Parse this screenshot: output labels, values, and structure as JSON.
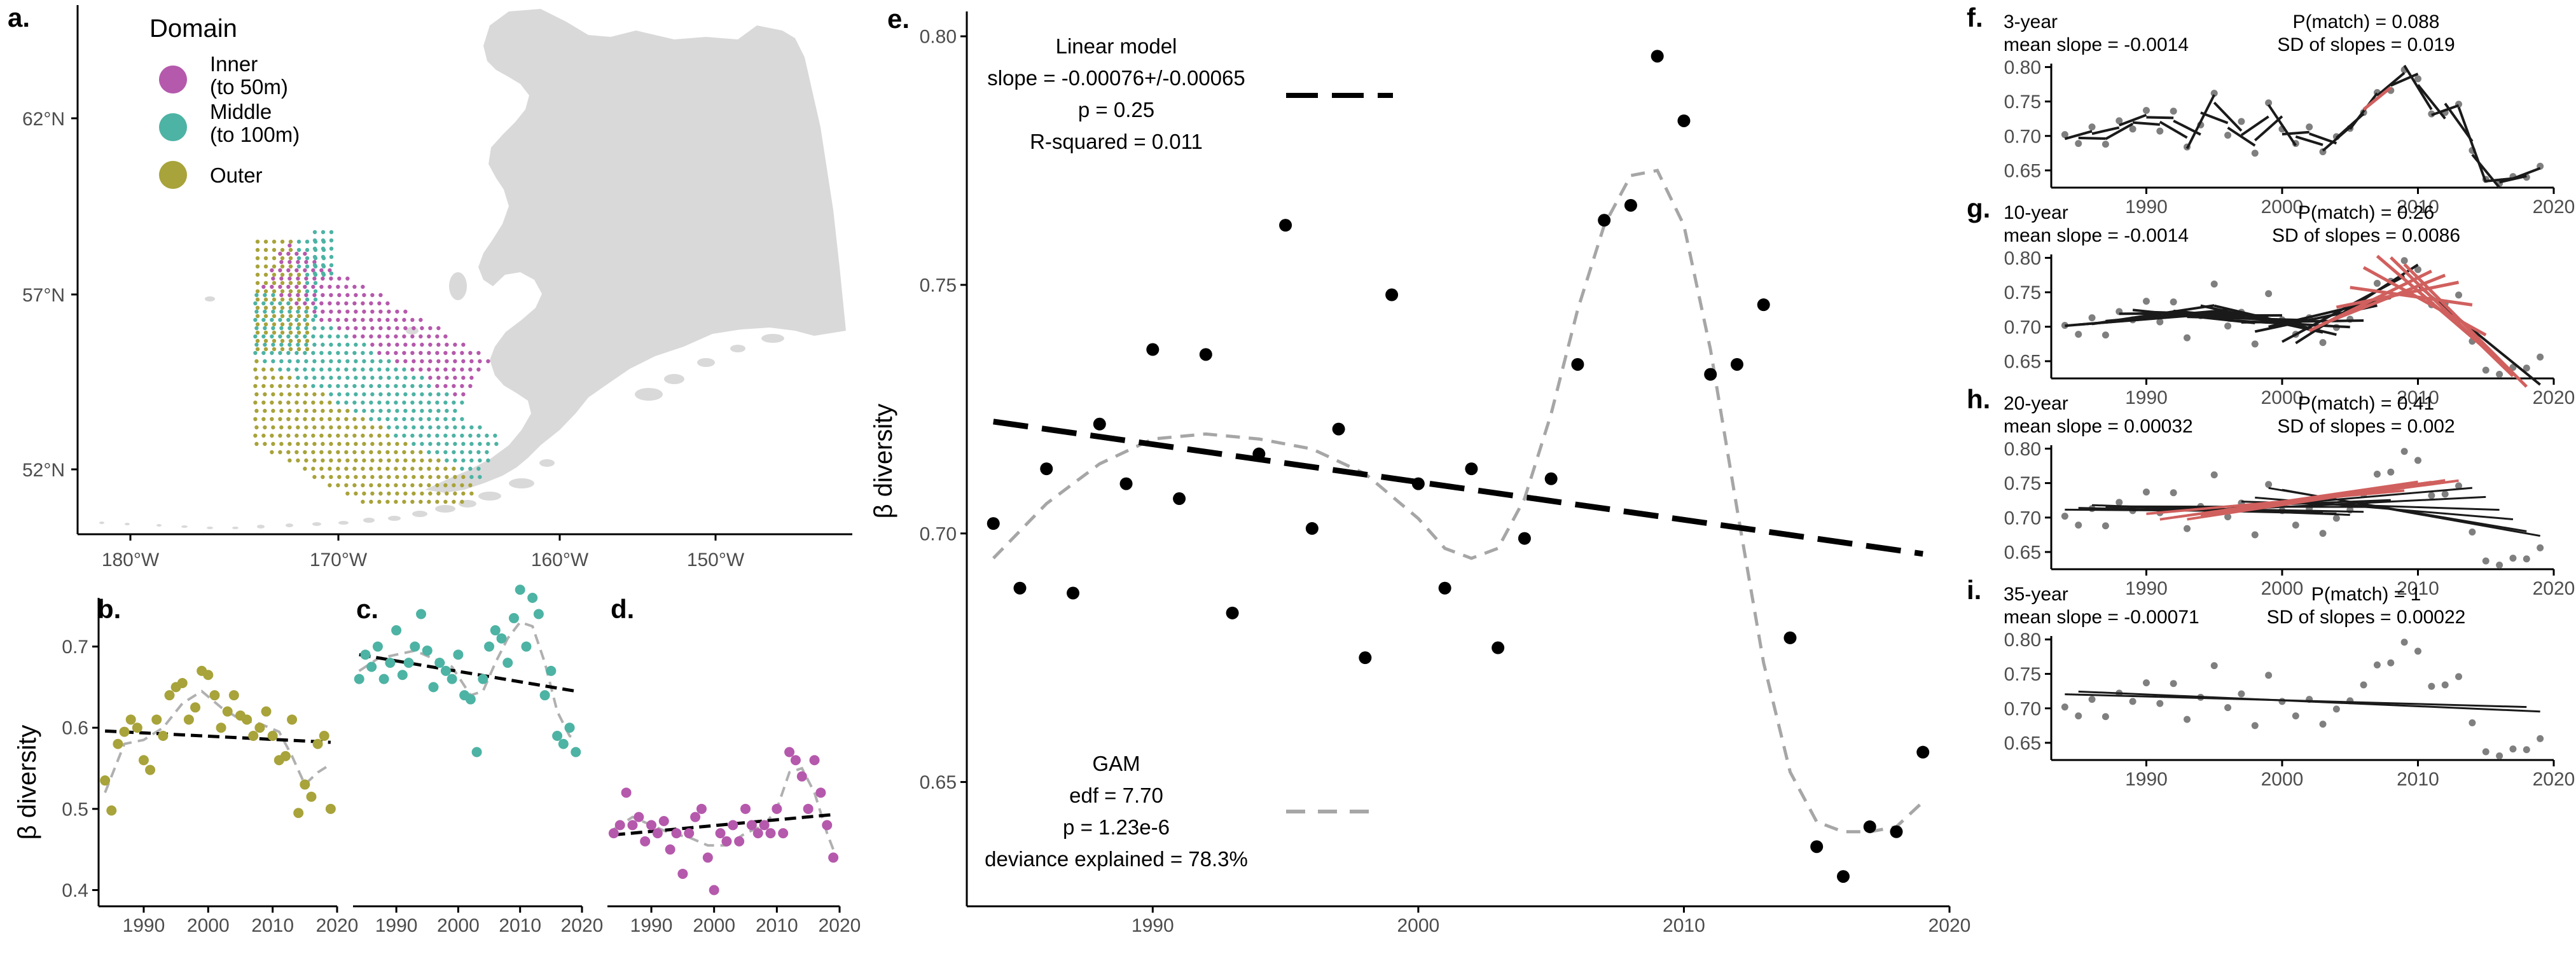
{
  "colors": {
    "inner": "#b559ac",
    "middle": "#4db3a4",
    "outer": "#a8a33a",
    "land": "#d9d9d9",
    "gam": "#a6a6a6",
    "window_match": "#d0605e",
    "window_other": "#1a1a1a",
    "point_small": "#7f7f7f"
  },
  "map": {
    "letter": "a.",
    "legend_title": "Domain",
    "legend": [
      {
        "label": [
          "Inner",
          "(to 50m)"
        ],
        "color": "inner"
      },
      {
        "label": [
          "Middle",
          "(to 100m)"
        ],
        "color": "middle"
      },
      {
        "label": [
          "Outer"
        ],
        "color": "outer"
      }
    ],
    "lat_ticks": [
      "62°N",
      "57°N",
      "52°N"
    ],
    "lon_ticks": [
      "180°W",
      "170°W",
      "160°W",
      "150°W"
    ]
  },
  "main": {
    "letter": "e.",
    "linear": {
      "lines": [
        "Linear model",
        "slope = -0.00076+/-0.00065",
        "p = 0.25",
        "R-squared = 0.011"
      ]
    },
    "gam": {
      "lines": [
        "GAM",
        "edf = 7.70",
        "p = 1.23e-6",
        "deviance explained = 78.3%"
      ]
    }
  },
  "subpanels": {
    "ylabel": "β diversity",
    "b": {
      "letter": "b."
    },
    "c": {
      "letter": "c."
    },
    "d": {
      "letter": "d."
    }
  },
  "windows": {
    "f": {
      "letter": "f.",
      "l1": "3-year",
      "l2": "mean slope = -0.0014",
      "r1": "P(match) = 0.088",
      "r2": "SD of slopes = 0.019"
    },
    "g": {
      "letter": "g.",
      "l1": "10-year",
      "l2": "mean slope = -0.0014",
      "r1": "P(match) = 0.26",
      "r2": "SD of slopes = 0.0086"
    },
    "h": {
      "letter": "h.",
      "l1": "20-year",
      "l2": "mean slope = 0.00032",
      "r1": "P(match) = 0.41",
      "r2": "SD of slopes = 0.002"
    },
    "i": {
      "letter": "i.",
      "l1": "35-year",
      "l2": "mean slope = -0.00071",
      "r1": "P(match) = 1",
      "r2": "SD of slopes = 0.00022"
    }
  },
  "chart_data": [
    {
      "id": "e",
      "type": "scatter",
      "ylabel": "β diversity",
      "xlim": [
        1983,
        2020
      ],
      "ylim": [
        0.625,
        0.805
      ],
      "x_ticks": [
        1990,
        2000,
        2010,
        2020
      ],
      "y_ticks": [
        0.65,
        0.7,
        0.75,
        0.8
      ],
      "grid": false,
      "x": [
        1984,
        1985,
        1986,
        1987,
        1988,
        1989,
        1990,
        1991,
        1992,
        1993,
        1994,
        1995,
        1996,
        1997,
        1998,
        1999,
        2000,
        2001,
        2002,
        2003,
        2004,
        2005,
        2006,
        2007,
        2008,
        2009,
        2010,
        2011,
        2012,
        2013,
        2014,
        2015,
        2016,
        2017,
        2018,
        2019
      ],
      "y": [
        0.702,
        0.689,
        0.713,
        0.688,
        0.722,
        0.71,
        0.737,
        0.707,
        0.736,
        0.684,
        0.716,
        0.762,
        0.701,
        0.721,
        0.675,
        0.748,
        0.71,
        0.689,
        0.713,
        0.677,
        0.699,
        0.711,
        0.734,
        0.763,
        0.766,
        0.796,
        0.783,
        0.732,
        0.734,
        0.746,
        0.679,
        0.637,
        0.631,
        0.641,
        0.64,
        0.656
      ],
      "linear_fit": {
        "slope": -0.00076,
        "at_1984": 0.7225
      },
      "gam_fit": {
        "x": [
          1984,
          1986,
          1988,
          1990,
          1992,
          1994,
          1996,
          1998,
          2000,
          2001,
          2002,
          2003,
          2004,
          2005,
          2006,
          2007,
          2008,
          2009,
          2010,
          2011,
          2012,
          2013,
          2014,
          2015,
          2016,
          2017,
          2018,
          2019
        ],
        "y": [
          0.695,
          0.706,
          0.714,
          0.719,
          0.72,
          0.719,
          0.717,
          0.712,
          0.703,
          0.697,
          0.695,
          0.697,
          0.707,
          0.724,
          0.745,
          0.762,
          0.772,
          0.773,
          0.762,
          0.737,
          0.705,
          0.674,
          0.652,
          0.642,
          0.64,
          0.64,
          0.641,
          0.646
        ]
      }
    },
    {
      "id": "b",
      "type": "scatter",
      "series": [
        {
          "color": "outer"
        }
      ],
      "ylabel": "β diversity",
      "xlim": [
        1983,
        2020
      ],
      "ylim": [
        0.38,
        0.76
      ],
      "x_ticks": [
        1990,
        2000,
        2010,
        2020
      ],
      "y_ticks": [
        0.4,
        0.5,
        0.6,
        0.7
      ],
      "x": [
        1984,
        1985,
        1986,
        1987,
        1988,
        1989,
        1990,
        1991,
        1992,
        1993,
        1994,
        1995,
        1996,
        1997,
        1998,
        1999,
        2000,
        2001,
        2002,
        2003,
        2004,
        2005,
        2006,
        2007,
        2008,
        2009,
        2010,
        2011,
        2012,
        2013,
        2014,
        2015,
        2016,
        2017,
        2018,
        2019
      ],
      "y": [
        0.535,
        0.498,
        0.58,
        0.595,
        0.61,
        0.6,
        0.56,
        0.548,
        0.61,
        0.59,
        0.64,
        0.65,
        0.655,
        0.61,
        0.625,
        0.67,
        0.665,
        0.64,
        0.6,
        0.62,
        0.64,
        0.615,
        0.61,
        0.59,
        0.6,
        0.62,
        0.59,
        0.56,
        0.565,
        0.61,
        0.495,
        0.53,
        0.515,
        0.58,
        0.59,
        0.5
      ],
      "linear_fit": {
        "at_1984": 0.596,
        "at_2019": 0.582
      },
      "gam_fit": {
        "x": [
          1984,
          1987,
          1990,
          1993,
          1996,
          1999,
          2002,
          2005,
          2008,
          2011,
          2013,
          2015,
          2017,
          2019
        ],
        "y": [
          0.52,
          0.58,
          0.585,
          0.6,
          0.63,
          0.645,
          0.625,
          0.61,
          0.605,
          0.595,
          0.565,
          0.53,
          0.545,
          0.555
        ]
      }
    },
    {
      "id": "c",
      "type": "scatter",
      "series": [
        {
          "color": "middle"
        }
      ],
      "xlim": [
        1983,
        2020
      ],
      "ylim": [
        0.38,
        0.76
      ],
      "x_ticks": [
        1990,
        2000,
        2010,
        2020
      ],
      "y_ticks": [
        0.4,
        0.5,
        0.6,
        0.7
      ],
      "x": [
        1984,
        1985,
        1986,
        1987,
        1988,
        1989,
        1990,
        1991,
        1992,
        1993,
        1994,
        1995,
        1996,
        1997,
        1998,
        1999,
        2000,
        2001,
        2002,
        2003,
        2004,
        2005,
        2006,
        2007,
        2008,
        2009,
        2010,
        2011,
        2012,
        2013,
        2014,
        2015,
        2016,
        2017,
        2018,
        2019
      ],
      "y": [
        0.66,
        0.69,
        0.675,
        0.7,
        0.66,
        0.68,
        0.72,
        0.665,
        0.68,
        0.7,
        0.74,
        0.695,
        0.65,
        0.68,
        0.67,
        0.66,
        0.69,
        0.64,
        0.635,
        0.57,
        0.66,
        0.7,
        0.72,
        0.71,
        0.68,
        0.735,
        0.77,
        0.7,
        0.76,
        0.74,
        0.64,
        0.67,
        0.59,
        0.58,
        0.6,
        0.57
      ],
      "linear_fit": {
        "at_1984": 0.69,
        "at_2019": 0.645
      },
      "gam_fit": {
        "x": [
          1984,
          1987,
          1990,
          1993,
          1996,
          1999,
          2002,
          2004,
          2006,
          2008,
          2010,
          2012,
          2014,
          2016,
          2018,
          2019
        ],
        "y": [
          0.67,
          0.685,
          0.69,
          0.695,
          0.685,
          0.675,
          0.64,
          0.645,
          0.68,
          0.71,
          0.73,
          0.725,
          0.68,
          0.62,
          0.59,
          0.585
        ]
      }
    },
    {
      "id": "d",
      "type": "scatter",
      "series": [
        {
          "color": "inner"
        }
      ],
      "xlim": [
        1983,
        2020
      ],
      "ylim": [
        0.38,
        0.76
      ],
      "x_ticks": [
        1990,
        2000,
        2010,
        2020
      ],
      "y_ticks": [
        0.4,
        0.5,
        0.6,
        0.7
      ],
      "x": [
        1984,
        1985,
        1986,
        1987,
        1988,
        1989,
        1990,
        1991,
        1992,
        1993,
        1994,
        1995,
        1996,
        1997,
        1998,
        1999,
        2000,
        2001,
        2002,
        2003,
        2004,
        2005,
        2006,
        2007,
        2008,
        2009,
        2010,
        2011,
        2012,
        2013,
        2014,
        2015,
        2016,
        2017,
        2018,
        2019
      ],
      "y": [
        0.47,
        0.48,
        0.52,
        0.48,
        0.49,
        0.46,
        0.48,
        0.47,
        0.485,
        0.45,
        0.47,
        0.42,
        0.47,
        0.49,
        0.5,
        0.44,
        0.4,
        0.47,
        0.46,
        0.48,
        0.46,
        0.5,
        0.48,
        0.47,
        0.48,
        0.47,
        0.5,
        0.47,
        0.57,
        0.56,
        0.54,
        0.5,
        0.56,
        0.52,
        0.48,
        0.44
      ],
      "linear_fit": {
        "at_1984": 0.468,
        "at_2019": 0.493
      },
      "gam_fit": {
        "x": [
          1984,
          1987,
          1990,
          1993,
          1996,
          1999,
          2002,
          2005,
          2008,
          2010,
          2012,
          2014,
          2016,
          2018,
          2019
        ],
        "y": [
          0.475,
          0.49,
          0.48,
          0.47,
          0.465,
          0.455,
          0.455,
          0.47,
          0.48,
          0.5,
          0.545,
          0.55,
          0.52,
          0.47,
          0.45
        ]
      }
    },
    {
      "id": "f",
      "type": "line",
      "window_years": 3,
      "xlim": [
        1983,
        2020
      ],
      "ylim": [
        0.625,
        0.805
      ],
      "x_ticks": [
        1990,
        2000,
        2010,
        2020
      ],
      "y_ticks": [
        0.65,
        0.7,
        0.75,
        0.8
      ],
      "red_windows": [
        2006
      ]
    },
    {
      "id": "g",
      "type": "line",
      "window_years": 10,
      "xlim": [
        1983,
        2020
      ],
      "ylim": [
        0.625,
        0.805
      ],
      "x_ticks": [
        1990,
        2000,
        2010,
        2020
      ],
      "y_ticks": [
        0.65,
        0.7,
        0.75,
        0.8
      ],
      "red_windows": [
        2002,
        2003,
        2004,
        2005,
        2006,
        2007,
        2008,
        2009
      ]
    },
    {
      "id": "h",
      "type": "line",
      "window_years": 20,
      "xlim": [
        1983,
        2020
      ],
      "ylim": [
        0.625,
        0.805
      ],
      "x_ticks": [
        1990,
        2000,
        2010,
        2020
      ],
      "y_ticks": [
        0.65,
        0.7,
        0.75,
        0.8
      ],
      "red_windows": [
        1990,
        1991,
        1992,
        1993,
        1994
      ]
    },
    {
      "id": "i",
      "type": "line",
      "window_years": 35,
      "xlim": [
        1983,
        2020
      ],
      "ylim": [
        0.625,
        0.805
      ],
      "x_ticks": [
        1990,
        2000,
        2010,
        2020
      ],
      "y_ticks": [
        0.65,
        0.7,
        0.75,
        0.8
      ],
      "red_windows": []
    }
  ]
}
